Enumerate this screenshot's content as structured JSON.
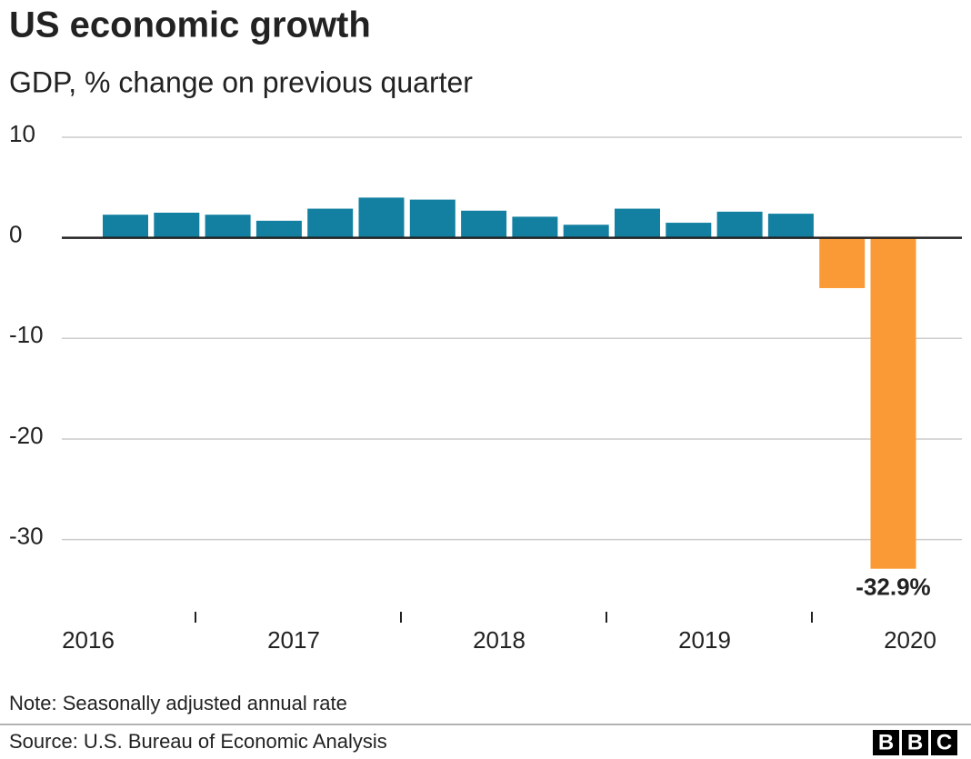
{
  "chart_data": {
    "type": "bar",
    "title": "US economic growth",
    "subtitle": "GDP, % change on previous quarter",
    "values": [
      2.3,
      2.5,
      2.3,
      1.7,
      2.9,
      4.0,
      3.8,
      2.7,
      2.1,
      1.3,
      2.9,
      1.5,
      2.6,
      2.4,
      -5.0,
      -32.9
    ],
    "value_labels": [
      null,
      null,
      null,
      null,
      null,
      null,
      null,
      null,
      null,
      null,
      null,
      null,
      null,
      null,
      null,
      "-32.9%"
    ],
    "year_labels": [
      "2016",
      "2017",
      "2018",
      "2019",
      "2020"
    ],
    "color": "#1380a1",
    "negative_color": "#fa9a36",
    "ylim": [
      -36,
      10
    ],
    "yticks": [
      10,
      0,
      -10,
      -20,
      -30
    ],
    "grid": true,
    "note": "Note: Seasonally adjusted annual rate",
    "source": "Source: U.S. Bureau of Economic Analysis",
    "logo_letters": [
      "B",
      "B",
      "C"
    ]
  }
}
